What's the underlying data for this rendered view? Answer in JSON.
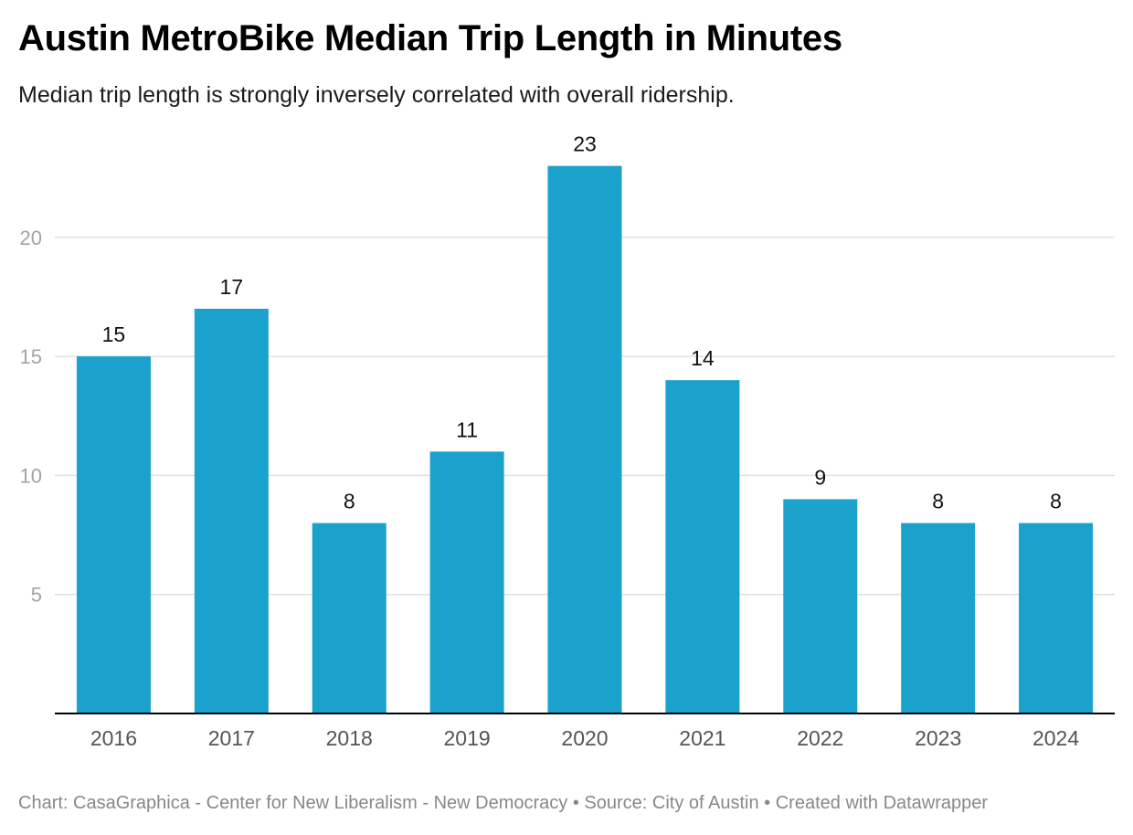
{
  "header": {
    "title": "Austin MetroBike Median Trip Length in Minutes",
    "subtitle": "Median trip length is strongly inversely correlated with overall ridership."
  },
  "footer": {
    "credit": "Chart: CasaGraphica - Center for New Liberalism - New Democracy • Source: City of Austin • Created with Datawrapper"
  },
  "colors": {
    "bar": "#1aa1cc",
    "grid": "#e0e0e0",
    "axis_text": "#a3a3a3",
    "category_text": "#555555"
  },
  "chart_data": {
    "type": "bar",
    "title": "Austin MetroBike Median Trip Length in Minutes",
    "subtitle": "Median trip length is strongly inversely correlated with overall ridership.",
    "categories": [
      "2016",
      "2017",
      "2018",
      "2019",
      "2020",
      "2021",
      "2022",
      "2023",
      "2024"
    ],
    "values": [
      15,
      17,
      8,
      11,
      23,
      14,
      9,
      8,
      8
    ],
    "data_labels": [
      "15",
      "17",
      "8",
      "11",
      "23",
      "14",
      "9",
      "8",
      "8"
    ],
    "xlabel": "",
    "ylabel": "",
    "ylim": [
      0,
      23
    ],
    "yticks": [
      5,
      10,
      15,
      20
    ],
    "ytick_labels": [
      "5",
      "10",
      "15",
      "20"
    ],
    "grid": true,
    "legend": "none"
  }
}
